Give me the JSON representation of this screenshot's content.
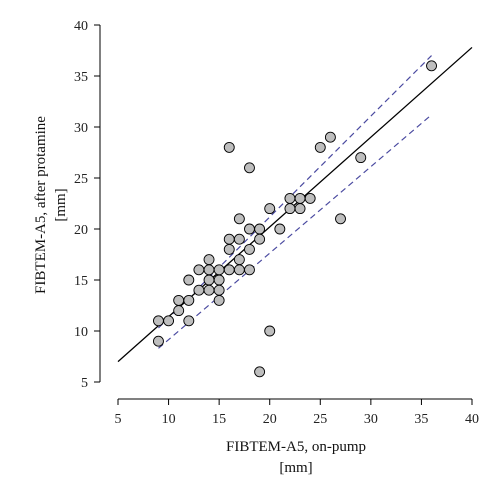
{
  "chart_data": {
    "type": "scatter",
    "xlabel": [
      "FIBTEM-A5, on-pump",
      "[mm]"
    ],
    "ylabel": [
      "FIBTEM-A5, after protamine",
      "[mm]"
    ],
    "xlim": [
      5,
      40
    ],
    "ylim": [
      5,
      40
    ],
    "xticks": [
      5,
      10,
      15,
      20,
      25,
      30,
      35,
      40
    ],
    "yticks": [
      5,
      10,
      15,
      20,
      25,
      30,
      35,
      40
    ],
    "grid": false,
    "marker_color": "#bebebe",
    "points": [
      {
        "x": 9,
        "y": 9
      },
      {
        "x": 9,
        "y": 11
      },
      {
        "x": 10,
        "y": 11
      },
      {
        "x": 11,
        "y": 12
      },
      {
        "x": 11,
        "y": 13
      },
      {
        "x": 12,
        "y": 11
      },
      {
        "x": 12,
        "y": 13
      },
      {
        "x": 12,
        "y": 15
      },
      {
        "x": 13,
        "y": 14
      },
      {
        "x": 13,
        "y": 16
      },
      {
        "x": 14,
        "y": 14
      },
      {
        "x": 14,
        "y": 15
      },
      {
        "x": 14,
        "y": 16
      },
      {
        "x": 14,
        "y": 17
      },
      {
        "x": 15,
        "y": 13
      },
      {
        "x": 15,
        "y": 14
      },
      {
        "x": 15,
        "y": 15
      },
      {
        "x": 15,
        "y": 16
      },
      {
        "x": 16,
        "y": 16
      },
      {
        "x": 16,
        "y": 18
      },
      {
        "x": 16,
        "y": 19
      },
      {
        "x": 16,
        "y": 28
      },
      {
        "x": 17,
        "y": 16
      },
      {
        "x": 17,
        "y": 17
      },
      {
        "x": 17,
        "y": 19
      },
      {
        "x": 17,
        "y": 21
      },
      {
        "x": 18,
        "y": 16
      },
      {
        "x": 18,
        "y": 18
      },
      {
        "x": 18,
        "y": 20
      },
      {
        "x": 18,
        "y": 26
      },
      {
        "x": 19,
        "y": 6
      },
      {
        "x": 19,
        "y": 19
      },
      {
        "x": 19,
        "y": 20
      },
      {
        "x": 20,
        "y": 10
      },
      {
        "x": 20,
        "y": 22
      },
      {
        "x": 21,
        "y": 20
      },
      {
        "x": 22,
        "y": 22
      },
      {
        "x": 22,
        "y": 23
      },
      {
        "x": 23,
        "y": 22
      },
      {
        "x": 23,
        "y": 23
      },
      {
        "x": 24,
        "y": 23
      },
      {
        "x": 25,
        "y": 28
      },
      {
        "x": 26,
        "y": 29
      },
      {
        "x": 27,
        "y": 21
      },
      {
        "x": 29,
        "y": 27
      },
      {
        "x": 36,
        "y": 36
      }
    ],
    "regression_line": {
      "x": [
        5,
        40
      ],
      "y": [
        7,
        37.8
      ],
      "color": "#000000",
      "style": "solid"
    },
    "confidence_bands": {
      "color": "#4a4aa0",
      "style": "dashed",
      "upper": {
        "x": [
          9,
          36
        ],
        "y": [
          10.3,
          37
        ]
      },
      "lower": {
        "x": [
          9,
          36
        ],
        "y": [
          8.3,
          31.2
        ]
      }
    }
  }
}
